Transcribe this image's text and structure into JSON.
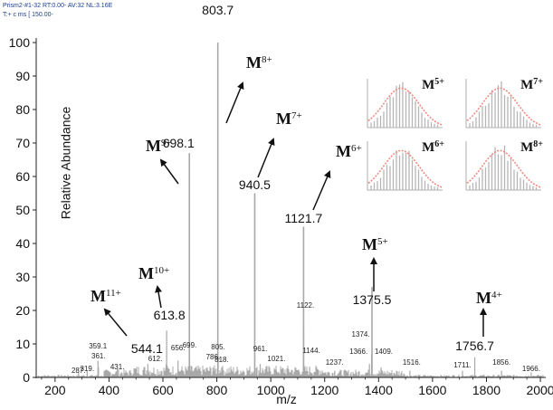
{
  "header": {
    "line1": "Prism2-#1-32 RT:0.00-      AV:32 NL:3.16E",
    "line2": "T:+ c ms [ 150.00-"
  },
  "colors": {
    "spectrum": "#a8a8a8",
    "axis": "#222222",
    "inset_bar": "#b5b5b5",
    "inset_fit": "#f08a80"
  },
  "chart_data": {
    "type": "bar",
    "title": "",
    "xlabel": "m/z",
    "ylabel": "Relative Abundance",
    "xlim": [
      130,
      2020
    ],
    "ylim": [
      0,
      100
    ],
    "xticks": [
      200,
      400,
      600,
      800,
      1000,
      1200,
      1400,
      1600,
      1800,
      2000
    ],
    "yticks": [
      0,
      10,
      20,
      30,
      40,
      50,
      60,
      70,
      80,
      90,
      100
    ],
    "peaks": [
      {
        "x": 287,
        "y": 1.5
      },
      {
        "x": 319,
        "y": 2
      },
      {
        "x": 359.1,
        "y": 5
      },
      {
        "x": 361,
        "y": 3
      },
      {
        "x": 431,
        "y": 2.5
      },
      {
        "x": 544.1,
        "y": 4
      },
      {
        "x": 612,
        "y": 4
      },
      {
        "x": 613.8,
        "y": 14
      },
      {
        "x": 656,
        "y": 5
      },
      {
        "x": 698.1,
        "y": 67
      },
      {
        "x": 699,
        "y": 6
      },
      {
        "x": 786,
        "y": 3
      },
      {
        "x": 803.7,
        "y": 100
      },
      {
        "x": 805,
        "y": 6
      },
      {
        "x": 818,
        "y": 3
      },
      {
        "x": 940.5,
        "y": 55
      },
      {
        "x": 961,
        "y": 4
      },
      {
        "x": 1021,
        "y": 2
      },
      {
        "x": 1121.7,
        "y": 45
      },
      {
        "x": 1122,
        "y": 14
      },
      {
        "x": 1144,
        "y": 3
      },
      {
        "x": 1237,
        "y": 2
      },
      {
        "x": 1366,
        "y": 4
      },
      {
        "x": 1374,
        "y": 7
      },
      {
        "x": 1375.5,
        "y": 27
      },
      {
        "x": 1409,
        "y": 3
      },
      {
        "x": 1516,
        "y": 2
      },
      {
        "x": 1711,
        "y": 2
      },
      {
        "x": 1756.7,
        "y": 6
      },
      {
        "x": 1856,
        "y": 2
      },
      {
        "x": 1966,
        "y": 1.5
      }
    ],
    "peak_labels": [
      {
        "x": 287,
        "text": "287."
      },
      {
        "x": 319,
        "text": "319."
      },
      {
        "x": 359.1,
        "text": "359.1"
      },
      {
        "x": 361,
        "text": "361."
      },
      {
        "x": 431,
        "text": "431."
      },
      {
        "x": 612,
        "text": "612."
      },
      {
        "x": 656,
        "text": "656."
      },
      {
        "x": 699,
        "text": "699."
      },
      {
        "x": 786,
        "text": "786."
      },
      {
        "x": 805,
        "text": "805."
      },
      {
        "x": 818,
        "text": "818."
      },
      {
        "x": 961,
        "text": "961."
      },
      {
        "x": 1021,
        "text": "1021."
      },
      {
        "x": 1122,
        "text": "1122."
      },
      {
        "x": 1144,
        "text": "1144."
      },
      {
        "x": 1237,
        "text": "1237."
      },
      {
        "x": 1366,
        "text": "1366."
      },
      {
        "x": 1374,
        "text": "1374."
      },
      {
        "x": 1409,
        "text": "1409."
      },
      {
        "x": 1516,
        "text": "1516."
      },
      {
        "x": 1711,
        "text": "1711."
      },
      {
        "x": 1856,
        "text": "1856."
      },
      {
        "x": 1966,
        "text": "1966."
      }
    ],
    "major_peaks": [
      {
        "x": 544.1,
        "text": "544.1"
      },
      {
        "x": 613.8,
        "text": "613.8"
      },
      {
        "x": 698.1,
        "text": "698.1"
      },
      {
        "x": 803.7,
        "text": "803.7"
      },
      {
        "x": 940.5,
        "text": "940.5"
      },
      {
        "x": 1121.7,
        "text": "1121.7"
      },
      {
        "x": 1375.5,
        "text": "1375.5"
      },
      {
        "x": 1756.7,
        "text": "1756.7"
      }
    ],
    "charge_states": [
      {
        "base": "M",
        "charge": "11+"
      },
      {
        "base": "M",
        "charge": "10+"
      },
      {
        "base": "M",
        "charge": "9+"
      },
      {
        "base": "M",
        "charge": "8+"
      },
      {
        "base": "M",
        "charge": "7+"
      },
      {
        "base": "M",
        "charge": "6+"
      },
      {
        "base": "M",
        "charge": "5+"
      },
      {
        "base": "M",
        "charge": "4+"
      }
    ],
    "insets": [
      {
        "label": "M",
        "charge": "5+"
      },
      {
        "label": "M",
        "charge": "7+"
      },
      {
        "label": "M",
        "charge": "6+"
      },
      {
        "label": "M",
        "charge": "8+"
      }
    ]
  }
}
